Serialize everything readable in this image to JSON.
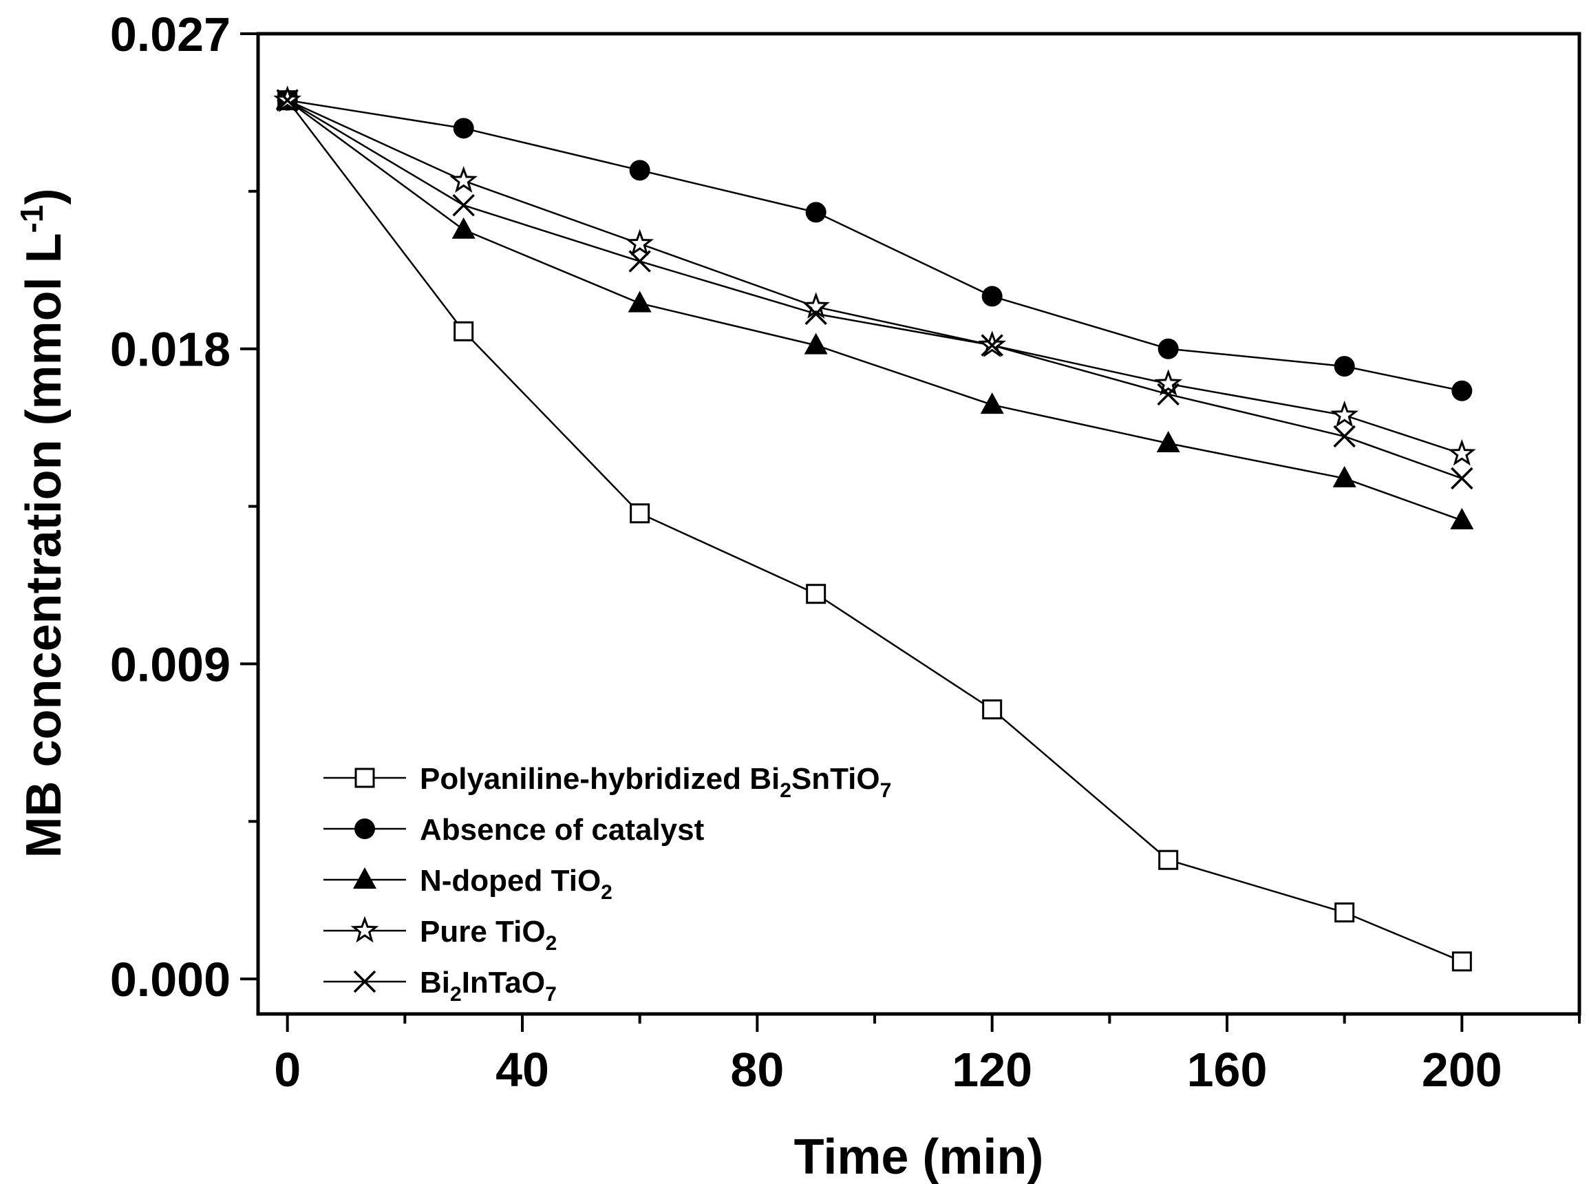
{
  "chart_data": {
    "type": "line",
    "title": "",
    "xlabel": "Time (min)",
    "ylabel": "MB concentration (mmol L",
    "ylabel_sup": "-1",
    "ylabel_close": ")",
    "xlim": [
      -5,
      220
    ],
    "ylim": [
      -0.001,
      0.027
    ],
    "x_ticks": [
      0,
      40,
      80,
      120,
      160,
      200
    ],
    "x_tick_labels": [
      "0",
      "40",
      "80",
      "120",
      "160",
      "200"
    ],
    "y_ticks": [
      0.0,
      0.009,
      0.018,
      0.027
    ],
    "y_tick_labels": [
      "0.000",
      "0.009",
      "0.018",
      "0.027"
    ],
    "x": [
      0,
      30,
      60,
      90,
      120,
      150,
      180,
      200
    ],
    "legend_position": "bottom-left",
    "series": [
      {
        "name": "Polyaniline-hybridized Bi2SnTiO7",
        "legend": [
          {
            "t": "Polyaniline-hybridized Bi"
          },
          {
            "t": "2",
            "sub": true
          },
          {
            "t": "SnTiO"
          },
          {
            "t": "7",
            "sub": true
          }
        ],
        "marker": "open-square",
        "values": [
          0.0251,
          0.0185,
          0.0133,
          0.011,
          0.0077,
          0.0034,
          0.0019,
          0.0005
        ]
      },
      {
        "name": "Absence of catalyst",
        "legend": [
          {
            "t": "Absence of catalyst"
          }
        ],
        "marker": "filled-circle",
        "values": [
          0.0251,
          0.0243,
          0.0231,
          0.0219,
          0.0195,
          0.018,
          0.0175,
          0.0168
        ]
      },
      {
        "name": "N-doped TiO2",
        "legend": [
          {
            "t": "N-doped TiO"
          },
          {
            "t": "2",
            "sub": true
          }
        ],
        "marker": "filled-triangle",
        "values": [
          0.0251,
          0.0214,
          0.0193,
          0.0181,
          0.0164,
          0.0153,
          0.0143,
          0.0131
        ]
      },
      {
        "name": "Pure TiO2",
        "legend": [
          {
            "t": "Pure TiO"
          },
          {
            "t": "2",
            "sub": true
          }
        ],
        "marker": "open-star",
        "values": [
          0.0251,
          0.0228,
          0.021,
          0.0192,
          0.0181,
          0.017,
          0.0161,
          0.015
        ]
      },
      {
        "name": "Bi2InTaO7",
        "legend": [
          {
            "t": "Bi"
          },
          {
            "t": "2",
            "sub": true
          },
          {
            "t": "InTaO"
          },
          {
            "t": "7",
            "sub": true
          }
        ],
        "marker": "x-cross",
        "values": [
          0.0251,
          0.0221,
          0.0205,
          0.019,
          0.0181,
          0.0167,
          0.0155,
          0.0143
        ]
      }
    ]
  }
}
